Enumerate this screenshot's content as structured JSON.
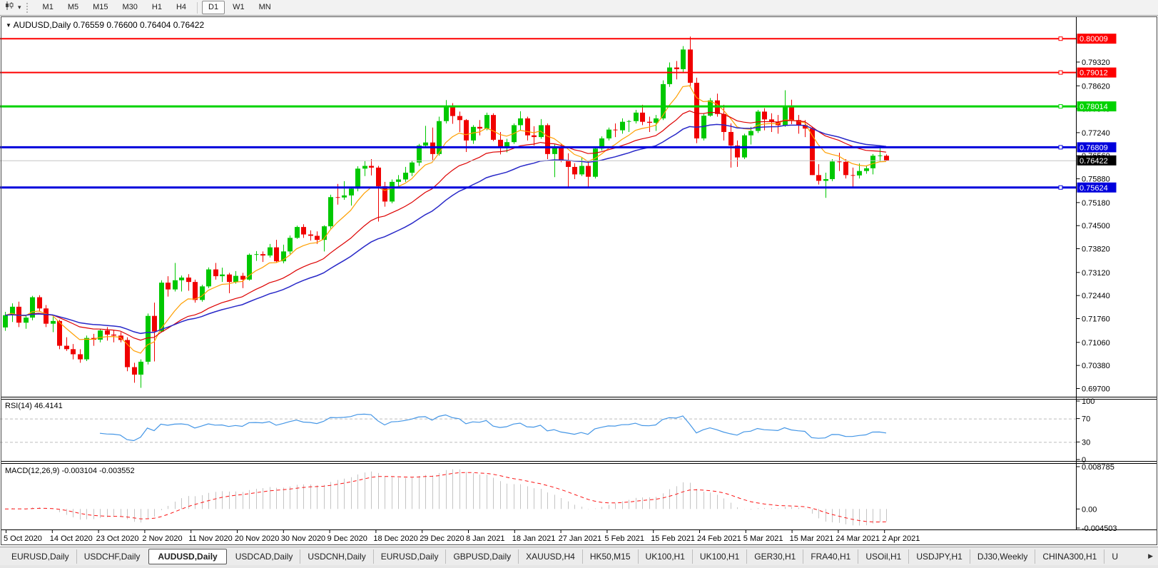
{
  "toolbar": {
    "timeframes": [
      "M1",
      "M5",
      "M15",
      "M30",
      "H1",
      "H4",
      "D1",
      "W1",
      "MN"
    ],
    "active_timeframe": "D1"
  },
  "chart": {
    "symbol_label": "AUDUSD,Daily",
    "ohlc_label": "0.76559 0.76600 0.76404 0.76422",
    "collapse_icon": "▼",
    "price_axis_ticks": [
      "0.79320",
      "0.78620",
      "0.77940",
      "0.77240",
      "0.76560",
      "0.75880",
      "0.75180",
      "0.74500",
      "0.73820",
      "0.73120",
      "0.72440",
      "0.71760",
      "0.71060",
      "0.70380",
      "0.69700"
    ],
    "lines": [
      {
        "label": "0.80009",
        "value": 0.80009,
        "color": "#fe0000",
        "width": 2
      },
      {
        "label": "0.79012",
        "value": 0.79012,
        "color": "#fe0000",
        "width": 2
      },
      {
        "label": "0.78014",
        "value": 0.78014,
        "color": "#00d200",
        "width": 3
      },
      {
        "label": "0.76809",
        "value": 0.76809,
        "color": "#0000dc",
        "width": 3
      },
      {
        "label": "0.75624",
        "value": 0.75624,
        "color": "#0000dc",
        "width": 3
      }
    ],
    "bid_line": {
      "label": "0.76422",
      "value": 0.76422,
      "line_color": "#c6c6c6",
      "box_color": "#000000"
    }
  },
  "rsi": {
    "header": "RSI(14) 46.4141",
    "period": 14,
    "ticks": [
      "100",
      "70",
      "30",
      "0"
    ],
    "levels": [
      70,
      30
    ],
    "range": [
      0,
      100
    ],
    "line_color": "#4496e6",
    "level_color": "#bcbcbc"
  },
  "macd": {
    "header": "MACD(12,26,9) -0.003104 -0.003552",
    "fast": 12,
    "slow": 26,
    "signal": 9,
    "ticks": [
      "0.008785",
      "0.00",
      "-0.004503"
    ],
    "histogram_color": "#c4c4c4",
    "signal_color": "#fb1414"
  },
  "chart_data": {
    "type": "candlestick",
    "title": "AUDUSD,Daily",
    "bull_color": "#00c800",
    "bear_color": "#f00000",
    "price_range": [
      0.695,
      0.8056
    ],
    "x_labels": [
      "5 Oct 2020",
      "14 Oct 2020",
      "23 Oct 2020",
      "2 Nov 2020",
      "11 Nov 2020",
      "20 Nov 2020",
      "30 Nov 2020",
      "9 Dec 2020",
      "18 Dec 2020",
      "29 Dec 2020",
      "8 Jan 2021",
      "18 Jan 2021",
      "27 Jan 2021",
      "5 Feb 2021",
      "15 Feb 2021",
      "24 Feb 2021",
      "5 Mar 2021",
      "15 Mar 2021",
      "24 Mar 2021",
      "2 Apr 2021"
    ],
    "overlays": [
      {
        "name": "ma-fast",
        "method": "ema",
        "period": 8,
        "color": "#ff9f00",
        "width": 1.2
      },
      {
        "name": "ma-medium",
        "method": "ema",
        "period": 21,
        "color": "#dd0000",
        "width": 1.2
      },
      {
        "name": "ma-slow",
        "method": "ema",
        "period": 34,
        "color": "#2828c8",
        "width": 1.5
      }
    ],
    "candles": [
      [
        0.715,
        0.7196,
        0.714,
        0.7186
      ],
      [
        0.7186,
        0.7221,
        0.7166,
        0.7211
      ],
      [
        0.7211,
        0.7226,
        0.7151,
        0.7164
      ],
      [
        0.7164,
        0.7186,
        0.7146,
        0.7179
      ],
      [
        0.7179,
        0.7243,
        0.7171,
        0.7239
      ],
      [
        0.7239,
        0.7245,
        0.7196,
        0.7206
      ],
      [
        0.7206,
        0.7216,
        0.7151,
        0.7161
      ],
      [
        0.7161,
        0.7181,
        0.7136,
        0.7169
      ],
      [
        0.7169,
        0.7173,
        0.7086,
        0.7096
      ],
      [
        0.7096,
        0.7121,
        0.7081,
        0.7086
      ],
      [
        0.7086,
        0.7101,
        0.7056,
        0.7071
      ],
      [
        0.7071,
        0.7086,
        0.7046,
        0.7056
      ],
      [
        0.7056,
        0.7126,
        0.7051,
        0.7119
      ],
      [
        0.7119,
        0.7131,
        0.7096,
        0.7114
      ],
      [
        0.7114,
        0.7146,
        0.7106,
        0.7141
      ],
      [
        0.7141,
        0.7151,
        0.7111,
        0.7129
      ],
      [
        0.7129,
        0.7141,
        0.7106,
        0.7126
      ],
      [
        0.7126,
        0.7136,
        0.7106,
        0.7113
      ],
      [
        0.7113,
        0.7121,
        0.7021,
        0.7033
      ],
      [
        0.7033,
        0.7046,
        0.6987,
        0.7011
      ],
      [
        0.7011,
        0.7056,
        0.6972,
        0.7049
      ],
      [
        0.7049,
        0.7191,
        0.7041,
        0.7184
      ],
      [
        0.7184,
        0.7223,
        0.705,
        0.7138
      ],
      [
        0.7138,
        0.7289,
        0.7136,
        0.7282
      ],
      [
        0.7282,
        0.7301,
        0.7241,
        0.7262
      ],
      [
        0.7262,
        0.734,
        0.7256,
        0.7289
      ],
      [
        0.7289,
        0.7303,
        0.7256,
        0.7297
      ],
      [
        0.7297,
        0.7307,
        0.7258,
        0.7284
      ],
      [
        0.7284,
        0.7291,
        0.7223,
        0.7231
      ],
      [
        0.7231,
        0.7276,
        0.7226,
        0.7271
      ],
      [
        0.7271,
        0.7327,
        0.7266,
        0.7321
      ],
      [
        0.7321,
        0.734,
        0.7291,
        0.7301
      ],
      [
        0.7301,
        0.7326,
        0.7284,
        0.7306
      ],
      [
        0.7306,
        0.7311,
        0.7251,
        0.7284
      ],
      [
        0.7284,
        0.7316,
        0.7279,
        0.7302
      ],
      [
        0.7302,
        0.7311,
        0.7266,
        0.7291
      ],
      [
        0.7291,
        0.7368,
        0.7288,
        0.7364
      ],
      [
        0.7364,
        0.7375,
        0.7346,
        0.7366
      ],
      [
        0.7366,
        0.7374,
        0.7343,
        0.7362
      ],
      [
        0.7362,
        0.7396,
        0.7356,
        0.7386
      ],
      [
        0.7386,
        0.7408,
        0.734,
        0.7345
      ],
      [
        0.7345,
        0.7394,
        0.7339,
        0.7374
      ],
      [
        0.7374,
        0.7421,
        0.7366,
        0.7414
      ],
      [
        0.7414,
        0.745,
        0.7411,
        0.7446
      ],
      [
        0.7446,
        0.7454,
        0.7414,
        0.7424
      ],
      [
        0.7424,
        0.7436,
        0.7406,
        0.742
      ],
      [
        0.742,
        0.7433,
        0.7396,
        0.7408
      ],
      [
        0.7408,
        0.7451,
        0.7374,
        0.7448
      ],
      [
        0.7448,
        0.7541,
        0.7441,
        0.7534
      ],
      [
        0.7534,
        0.7573,
        0.7512,
        0.7533
      ],
      [
        0.7533,
        0.7581,
        0.7526,
        0.7539
      ],
      [
        0.7539,
        0.7564,
        0.7509,
        0.7559
      ],
      [
        0.7559,
        0.7625,
        0.7551,
        0.7618
      ],
      [
        0.7618,
        0.764,
        0.7596,
        0.7626
      ],
      [
        0.7626,
        0.7646,
        0.7598,
        0.7621
      ],
      [
        0.7621,
        0.7626,
        0.7462,
        0.7566
      ],
      [
        0.7566,
        0.7579,
        0.7506,
        0.7521
      ],
      [
        0.7521,
        0.7586,
        0.7516,
        0.7579
      ],
      [
        0.7579,
        0.7599,
        0.7561,
        0.7586
      ],
      [
        0.7586,
        0.7623,
        0.7579,
        0.7606
      ],
      [
        0.7606,
        0.7641,
        0.7596,
        0.7636
      ],
      [
        0.7636,
        0.7691,
        0.7626,
        0.7686
      ],
      [
        0.7686,
        0.7744,
        0.7681,
        0.7695
      ],
      [
        0.7695,
        0.7739,
        0.7643,
        0.7661
      ],
      [
        0.7661,
        0.7771,
        0.7656,
        0.7758
      ],
      [
        0.7758,
        0.782,
        0.7751,
        0.7803
      ],
      [
        0.7803,
        0.7811,
        0.775,
        0.7773
      ],
      [
        0.7773,
        0.7786,
        0.7726,
        0.7761
      ],
      [
        0.7761,
        0.7764,
        0.7667,
        0.7701
      ],
      [
        0.7701,
        0.7746,
        0.7691,
        0.7741
      ],
      [
        0.7741,
        0.7761,
        0.7716,
        0.7736
      ],
      [
        0.7736,
        0.7783,
        0.7731,
        0.7776
      ],
      [
        0.7776,
        0.7781,
        0.7699,
        0.7703
      ],
      [
        0.7703,
        0.7726,
        0.766,
        0.7681
      ],
      [
        0.7681,
        0.7706,
        0.7666,
        0.7696
      ],
      [
        0.7696,
        0.7751,
        0.7691,
        0.7746
      ],
      [
        0.7746,
        0.7787,
        0.7731,
        0.7766
      ],
      [
        0.7766,
        0.7771,
        0.7701,
        0.7716
      ],
      [
        0.7716,
        0.7743,
        0.7686,
        0.7711
      ],
      [
        0.7711,
        0.7764,
        0.7706,
        0.7746
      ],
      [
        0.7746,
        0.7751,
        0.7646,
        0.7661
      ],
      [
        0.7661,
        0.7689,
        0.7593,
        0.7681
      ],
      [
        0.7681,
        0.7691,
        0.7637,
        0.7641
      ],
      [
        0.7641,
        0.7663,
        0.7564,
        0.7623
      ],
      [
        0.7623,
        0.7634,
        0.7587,
        0.7601
      ],
      [
        0.7601,
        0.7651,
        0.7596,
        0.7626
      ],
      [
        0.7626,
        0.7641,
        0.756,
        0.7594
      ],
      [
        0.7594,
        0.7681,
        0.7589,
        0.7677
      ],
      [
        0.7677,
        0.7713,
        0.7671,
        0.7707
      ],
      [
        0.7707,
        0.7739,
        0.7701,
        0.7733
      ],
      [
        0.7733,
        0.7751,
        0.7711,
        0.7731
      ],
      [
        0.7731,
        0.7766,
        0.7721,
        0.7756
      ],
      [
        0.7756,
        0.7761,
        0.7726,
        0.7758
      ],
      [
        0.7758,
        0.7791,
        0.7751,
        0.7783
      ],
      [
        0.7783,
        0.7806,
        0.7746,
        0.7756
      ],
      [
        0.7756,
        0.7771,
        0.7726,
        0.7753
      ],
      [
        0.7753,
        0.7776,
        0.7729,
        0.7766
      ],
      [
        0.7766,
        0.7878,
        0.7761,
        0.7867
      ],
      [
        0.7867,
        0.7931,
        0.7859,
        0.7916
      ],
      [
        0.7916,
        0.7935,
        0.7881,
        0.7911
      ],
      [
        0.7911,
        0.7979,
        0.7901,
        0.7969
      ],
      [
        0.7969,
        0.8007,
        0.7861,
        0.7871
      ],
      [
        0.7871,
        0.7886,
        0.7693,
        0.7707
      ],
      [
        0.7707,
        0.7781,
        0.7701,
        0.7774
      ],
      [
        0.7774,
        0.7826,
        0.7771,
        0.7819
      ],
      [
        0.7819,
        0.7839,
        0.7771,
        0.7779
      ],
      [
        0.7779,
        0.7806,
        0.7701,
        0.7726
      ],
      [
        0.7726,
        0.7751,
        0.7621,
        0.7686
      ],
      [
        0.7686,
        0.7701,
        0.7623,
        0.7651
      ],
      [
        0.7651,
        0.7721,
        0.7646,
        0.7716
      ],
      [
        0.7716,
        0.7741,
        0.7689,
        0.7729
      ],
      [
        0.7729,
        0.7791,
        0.7723,
        0.7786
      ],
      [
        0.7786,
        0.7796,
        0.7731,
        0.7763
      ],
      [
        0.7763,
        0.7781,
        0.7726,
        0.7756
      ],
      [
        0.7756,
        0.7776,
        0.7721,
        0.7746
      ],
      [
        0.7746,
        0.7849,
        0.7741,
        0.7801
      ],
      [
        0.7801,
        0.7821,
        0.7749,
        0.7761
      ],
      [
        0.7761,
        0.7776,
        0.7721,
        0.7746
      ],
      [
        0.7746,
        0.7761,
        0.7711,
        0.7736
      ],
      [
        0.7736,
        0.7741,
        0.7599,
        0.7599
      ],
      [
        0.7599,
        0.7631,
        0.7571,
        0.7582
      ],
      [
        0.7582,
        0.7606,
        0.7532,
        0.7587
      ],
      [
        0.7587,
        0.7646,
        0.7581,
        0.7639
      ],
      [
        0.7639,
        0.7665,
        0.7611,
        0.7638
      ],
      [
        0.7638,
        0.7646,
        0.7589,
        0.7599
      ],
      [
        0.7599,
        0.7621,
        0.7563,
        0.7598
      ],
      [
        0.7598,
        0.7633,
        0.7589,
        0.7611
      ],
      [
        0.7611,
        0.7626,
        0.7603,
        0.7619
      ],
      [
        0.7619,
        0.7661,
        0.7601,
        0.7656
      ],
      [
        0.7656,
        0.7678,
        0.7638,
        0.7657
      ],
      [
        0.76559,
        0.766,
        0.76404,
        0.76422
      ]
    ]
  },
  "tabs": {
    "items": [
      "EURUSD,Daily",
      "USDCHF,Daily",
      "AUDUSD,Daily",
      "USDCAD,Daily",
      "USDCNH,Daily",
      "EURUSD,Daily",
      "GBPUSD,Daily",
      "XAUUSD,H4",
      "HK50,M15",
      "UK100,H1",
      "UK100,H1",
      "GER30,H1",
      "FRA40,H1",
      "USOil,H1",
      "USDJPY,H1",
      "DJ30,Weekly",
      "CHINA300,H1",
      "U"
    ],
    "active_index": 2,
    "scroll_right_icon": "▶"
  }
}
